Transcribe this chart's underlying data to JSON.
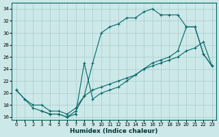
{
  "xlabel": "Humidex (Indice chaleur)",
  "background_color": "#cce8e8",
  "grid_color": "#aacccc",
  "line_color": "#006666",
  "xlim": [
    -0.5,
    23.5
  ],
  "ylim": [
    15.5,
    35
  ],
  "xticks": [
    0,
    1,
    2,
    3,
    4,
    5,
    6,
    7,
    8,
    9,
    10,
    11,
    12,
    13,
    14,
    15,
    16,
    17,
    18,
    19,
    20,
    21,
    22,
    23
  ],
  "yticks": [
    16,
    18,
    20,
    22,
    24,
    26,
    28,
    30,
    32,
    34
  ],
  "line1_x": [
    0,
    1,
    2,
    3,
    4,
    5,
    6,
    7,
    8,
    9,
    10,
    11,
    12,
    13,
    14,
    15,
    16,
    17,
    18,
    19,
    20,
    21,
    22,
    23
  ],
  "line1_y": [
    20.5,
    19.0,
    17.5,
    17.0,
    16.5,
    16.5,
    16.0,
    17.0,
    19.5,
    25.0,
    30.0,
    31.0,
    31.5,
    32.5,
    32.5,
    33.5,
    34.0,
    33.0,
    33.0,
    33.0,
    31.0,
    31.0,
    26.5,
    24.5
  ],
  "line2_x": [
    0,
    1,
    2,
    3,
    4,
    5,
    6,
    7,
    8,
    9,
    10,
    11,
    12,
    13,
    14,
    15,
    16,
    17,
    18,
    19,
    20,
    21,
    22,
    23
  ],
  "line2_y": [
    20.5,
    19.0,
    18.0,
    18.0,
    17.0,
    17.0,
    16.5,
    17.5,
    19.5,
    20.5,
    21.0,
    21.5,
    22.0,
    22.5,
    23.0,
    24.0,
    24.5,
    25.0,
    25.5,
    26.0,
    27.0,
    27.5,
    28.5,
    24.5
  ],
  "line3_x": [
    3,
    4,
    5,
    6,
    7,
    8,
    9,
    10,
    11,
    12,
    13,
    14,
    15,
    16,
    17,
    18,
    19,
    20,
    21,
    22,
    23
  ],
  "line3_y": [
    17.0,
    16.5,
    16.5,
    16.0,
    16.5,
    25.0,
    19.0,
    20.0,
    20.5,
    21.0,
    22.0,
    23.0,
    24.0,
    25.0,
    25.5,
    26.0,
    27.0,
    31.0,
    31.0,
    26.5,
    24.5
  ]
}
